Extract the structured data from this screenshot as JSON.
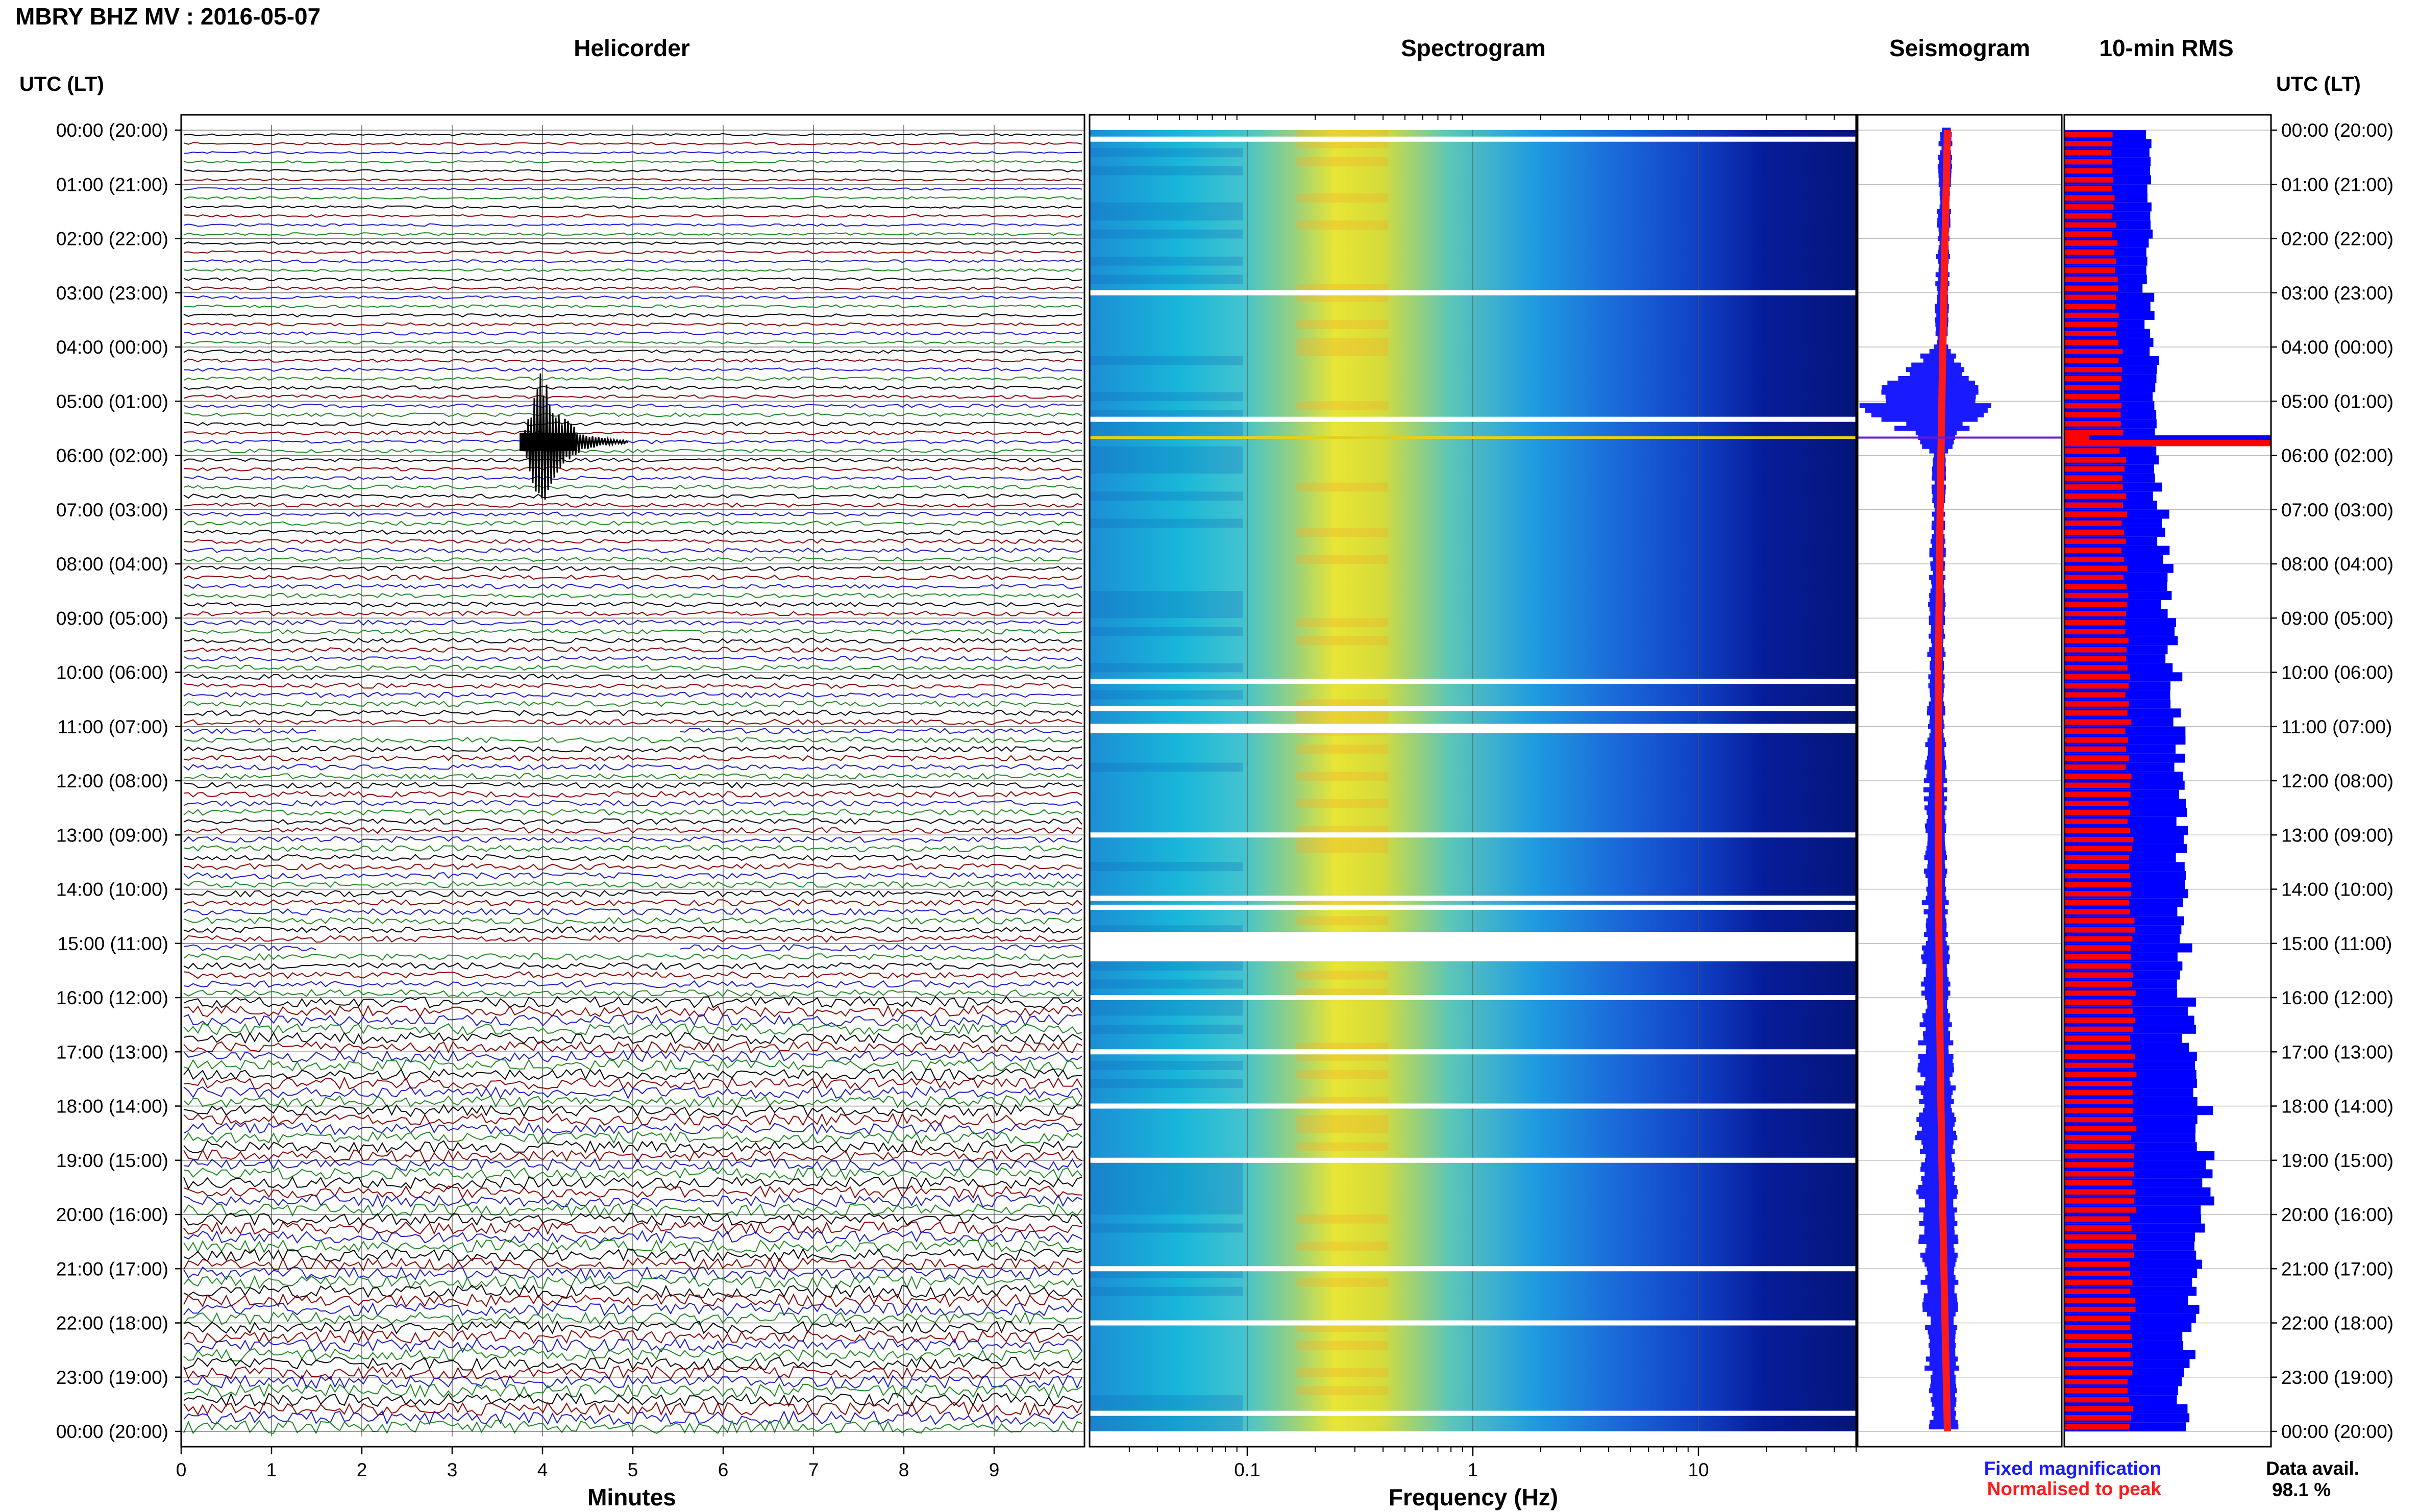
{
  "header": {
    "title": "MBRY BHZ MV : 2016-05-07"
  },
  "panels": {
    "helicorder": "Helicorder",
    "spectrogram": "Spectrogram",
    "seismogram": "Seismogram",
    "rms": "10-min RMS"
  },
  "time_axis": {
    "left_label": "UTC (LT)",
    "right_label": "UTC (LT)",
    "ticks": [
      "00:00 (20:00)",
      "01:00 (21:00)",
      "02:00 (22:00)",
      "03:00 (23:00)",
      "04:00 (00:00)",
      "05:00 (01:00)",
      "06:00 (02:00)",
      "07:00 (03:00)",
      "08:00 (04:00)",
      "09:00 (05:00)",
      "10:00 (06:00)",
      "11:00 (07:00)",
      "12:00 (08:00)",
      "13:00 (09:00)",
      "14:00 (10:00)",
      "15:00 (11:00)",
      "16:00 (12:00)",
      "17:00 (13:00)",
      "18:00 (14:00)",
      "19:00 (15:00)",
      "20:00 (16:00)",
      "21:00 (17:00)",
      "22:00 (18:00)",
      "23:00 (19:00)",
      "00:00 (20:00)"
    ]
  },
  "helicorder_axis": {
    "xlabel": "Minutes",
    "ticks": [
      "0",
      "1",
      "2",
      "3",
      "4",
      "5",
      "6",
      "7",
      "8",
      "9"
    ]
  },
  "spectrogram_axis": {
    "xlabel": "Frequency (Hz)",
    "ticks": [
      "0.1",
      "1",
      "10"
    ]
  },
  "legend": {
    "fixed": "Fixed magnification",
    "normalised": "Normalised to peak",
    "fixed_color": "#1a1aff",
    "normalised_color": "#ff1a1a"
  },
  "availability": {
    "label": "Data avail.",
    "value": "98.1 %"
  },
  "colors": {
    "trace_cycle": [
      "#000000",
      "#8b0000",
      "#1a1acd",
      "#1e8b22"
    ],
    "rms_fixed": "#0000ff",
    "rms_normalised": "#ff0000"
  },
  "chart_data": [
    {
      "type": "line",
      "panel": "Helicorder",
      "xlabel": "Minutes",
      "xlim": [
        0,
        10
      ],
      "ylim": [
        "00:00",
        "24:00"
      ],
      "rows": 144,
      "row_duration_minutes": 10,
      "events": [
        {
          "time_utc": "05:40",
          "minute_in_row": 4.0,
          "note": "large transient"
        }
      ],
      "gaps": [
        {
          "start_utc": "11:00",
          "end_utc": "11:10"
        },
        {
          "start_utc": "15:00",
          "end_utc": "15:10"
        }
      ]
    },
    {
      "type": "heatmap",
      "panel": "Spectrogram",
      "xlabel": "Frequency (Hz)",
      "xscale": "log",
      "xlim": [
        0.02,
        50
      ],
      "peak_energy_hz": 0.3,
      "gaps_utc": [
        "00:10",
        "03:00",
        "05:20",
        "10:10",
        "10:40",
        "11:00",
        "13:00",
        "14:10",
        "14:20",
        "14:50",
        "15:10",
        "16:00",
        "17:00",
        "18:00",
        "19:00",
        "21:00",
        "22:00",
        "23:40"
      ]
    },
    {
      "type": "area",
      "panel": "Seismogram",
      "series": [
        {
          "name": "Fixed magnification",
          "values": [
            0.05,
            0.05,
            0.05,
            0.05,
            0.05,
            0.5,
            0.05,
            0.05,
            0.06,
            0.06,
            0.07,
            0.07,
            0.08,
            0.09,
            0.09,
            0.1,
            0.11,
            0.13,
            0.14,
            0.15,
            0.15,
            0.14,
            0.13,
            0.12,
            0.1
          ]
        },
        {
          "name": "Normalised to peak",
          "values": [
            0.03,
            0.03,
            0.03,
            0.03,
            0.03,
            0.4,
            0.03,
            0.03,
            0.03,
            0.03,
            0.04,
            0.04,
            0.04,
            0.04,
            0.04,
            0.04,
            0.04,
            0.04,
            0.04,
            0.04,
            0.04,
            0.04,
            0.04,
            0.04,
            0.04
          ]
        }
      ]
    },
    {
      "type": "bar",
      "panel": "10-min RMS",
      "categories": [
        "00",
        "01",
        "02",
        "03",
        "04",
        "05",
        "06",
        "07",
        "08",
        "09",
        "10",
        "11",
        "12",
        "13",
        "14",
        "15",
        "16",
        "17",
        "18",
        "19",
        "20",
        "21",
        "22",
        "23"
      ],
      "series": [
        {
          "name": "Fixed magnification",
          "values": [
            0.4,
            0.4,
            0.4,
            0.41,
            0.43,
            0.45,
            0.46,
            0.48,
            0.5,
            0.52,
            0.54,
            0.55,
            0.56,
            0.56,
            0.57,
            0.58,
            0.6,
            0.64,
            0.68,
            0.68,
            0.66,
            0.63,
            0.6,
            0.58
          ]
        },
        {
          "name": "Normalised to peak",
          "values": [
            0.23,
            0.24,
            0.25,
            0.26,
            0.27,
            0.28,
            0.29,
            0.29,
            0.3,
            0.3,
            0.31,
            0.31,
            0.32,
            0.32,
            0.33,
            0.33,
            0.33,
            0.34,
            0.34,
            0.34,
            0.33,
            0.33,
            0.33,
            0.32
          ]
        }
      ],
      "spike_utc": "05:40"
    }
  ]
}
